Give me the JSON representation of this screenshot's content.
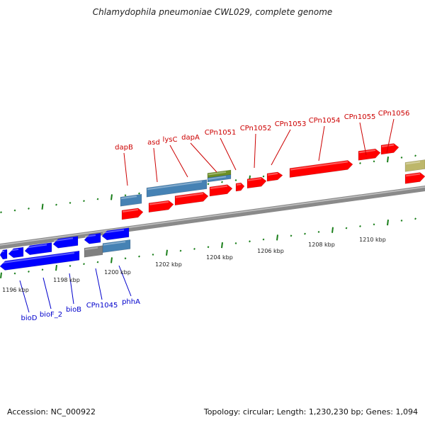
{
  "title": "Chlamydophila pneumoniae CWL029, complete genome",
  "footer": {
    "accession": "Accession: NC_000922",
    "summary": "Topology: circular; Length: 1,230,230 bp; Genes: 1,094"
  },
  "scale_labels": [
    "1196 kbp",
    "1198 kbp",
    "1200 kbp",
    "1202 kbp",
    "1204 kbp",
    "1206 kbp",
    "1208 kbp",
    "1210 kbp"
  ],
  "forward_gene_labels": [
    "dapB",
    "asd",
    "lysC",
    "dapA",
    "CPn1051",
    "CPn1052",
    "CPn1053",
    "CPn1054",
    "CPn1055",
    "CPn1056"
  ],
  "reverse_gene_labels": [
    "bioD",
    "bioF_2",
    "bioB",
    "CPn1045",
    "phhA"
  ],
  "colors": {
    "forward_label": "#cc0000",
    "reverse_label": "#0000cc",
    "forward_cds": "#ff0000",
    "reverse_cds": "#0000ff",
    "other_feature": "#4682b4",
    "pseudo": "#808080",
    "rna": "#6b8e23",
    "misc": "#bdb76b",
    "tick": "#1a7f1a"
  }
}
